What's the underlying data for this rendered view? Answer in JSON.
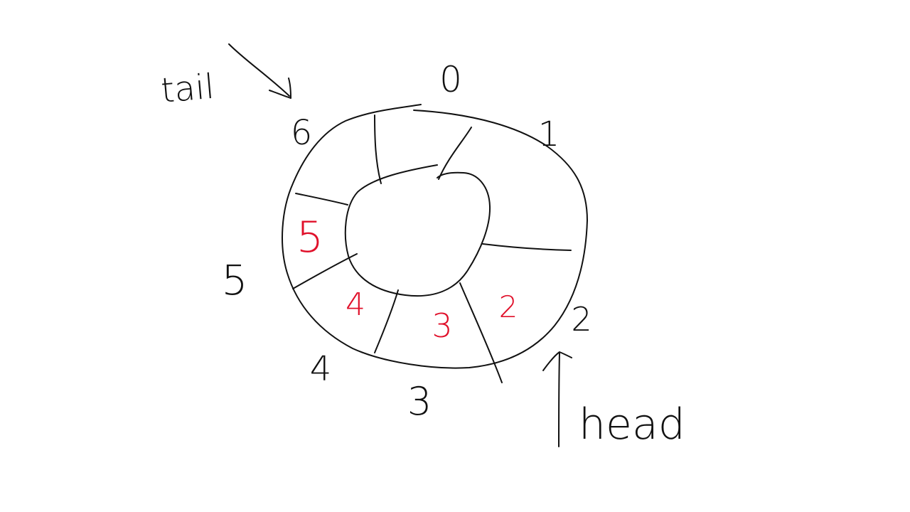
{
  "colors": {
    "ink": "#111111",
    "stored": "#e0102a",
    "background": "#ffffff"
  },
  "pointers": {
    "tail": "tail",
    "head": "head"
  },
  "slot_indices": [
    "0",
    "1",
    "2",
    "3",
    "4",
    "5",
    "6"
  ],
  "stored_values": [
    "2",
    "3",
    "4",
    "5"
  ]
}
